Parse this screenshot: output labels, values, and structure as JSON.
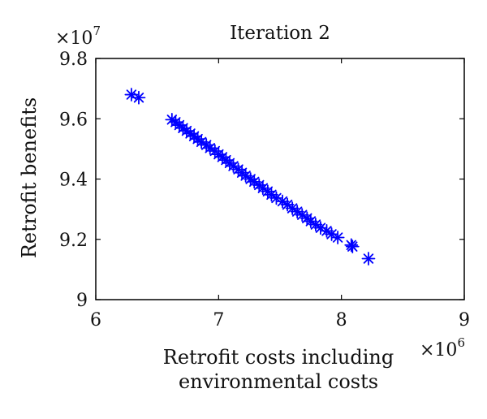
{
  "chart_data": {
    "type": "scatter",
    "title": "Iteration 2",
    "xlabel_lines": [
      "Retrofit costs including",
      "environmental costs"
    ],
    "ylabel": "Retrofit benefits",
    "x_multiplier": {
      "base": "×10",
      "exponent": "6"
    },
    "y_multiplier": {
      "base": "×10",
      "exponent": "7"
    },
    "xlim": [
      6,
      9
    ],
    "ylim": [
      9,
      9.8
    ],
    "x_ticks": [
      6,
      7,
      8,
      9
    ],
    "y_ticks": [
      9,
      9.2,
      9.4,
      9.6,
      9.8
    ],
    "x_tick_labels": [
      "6",
      "7",
      "8",
      "9"
    ],
    "y_tick_labels": [
      "9",
      "9.2",
      "9.4",
      "9.6",
      "9.8"
    ],
    "grid": false,
    "marker": "asterisk",
    "marker_color": "#0000ff",
    "x": [
      6.29,
      6.35,
      6.62,
      6.65,
      6.68,
      6.71,
      6.74,
      6.77,
      6.8,
      6.83,
      6.86,
      6.9,
      6.93,
      6.97,
      7.0,
      7.03,
      7.06,
      7.09,
      7.12,
      7.16,
      7.19,
      7.22,
      7.26,
      7.29,
      7.33,
      7.36,
      7.4,
      7.43,
      7.47,
      7.52,
      7.56,
      7.6,
      7.64,
      7.68,
      7.72,
      7.75,
      7.79,
      7.83,
      7.88,
      7.92,
      7.97,
      8.08,
      8.09,
      8.22
    ],
    "y": [
      9.68,
      9.67,
      9.597,
      9.589,
      9.579,
      9.569,
      9.56,
      9.551,
      9.542,
      9.533,
      9.523,
      9.513,
      9.503,
      9.493,
      9.482,
      9.473,
      9.463,
      9.453,
      9.443,
      9.432,
      9.421,
      9.411,
      9.4,
      9.391,
      9.38,
      9.37,
      9.359,
      9.348,
      9.337,
      9.326,
      9.315,
      9.303,
      9.292,
      9.281,
      9.27,
      9.26,
      9.249,
      9.238,
      9.228,
      9.217,
      9.206,
      9.181,
      9.176,
      9.136
    ]
  }
}
